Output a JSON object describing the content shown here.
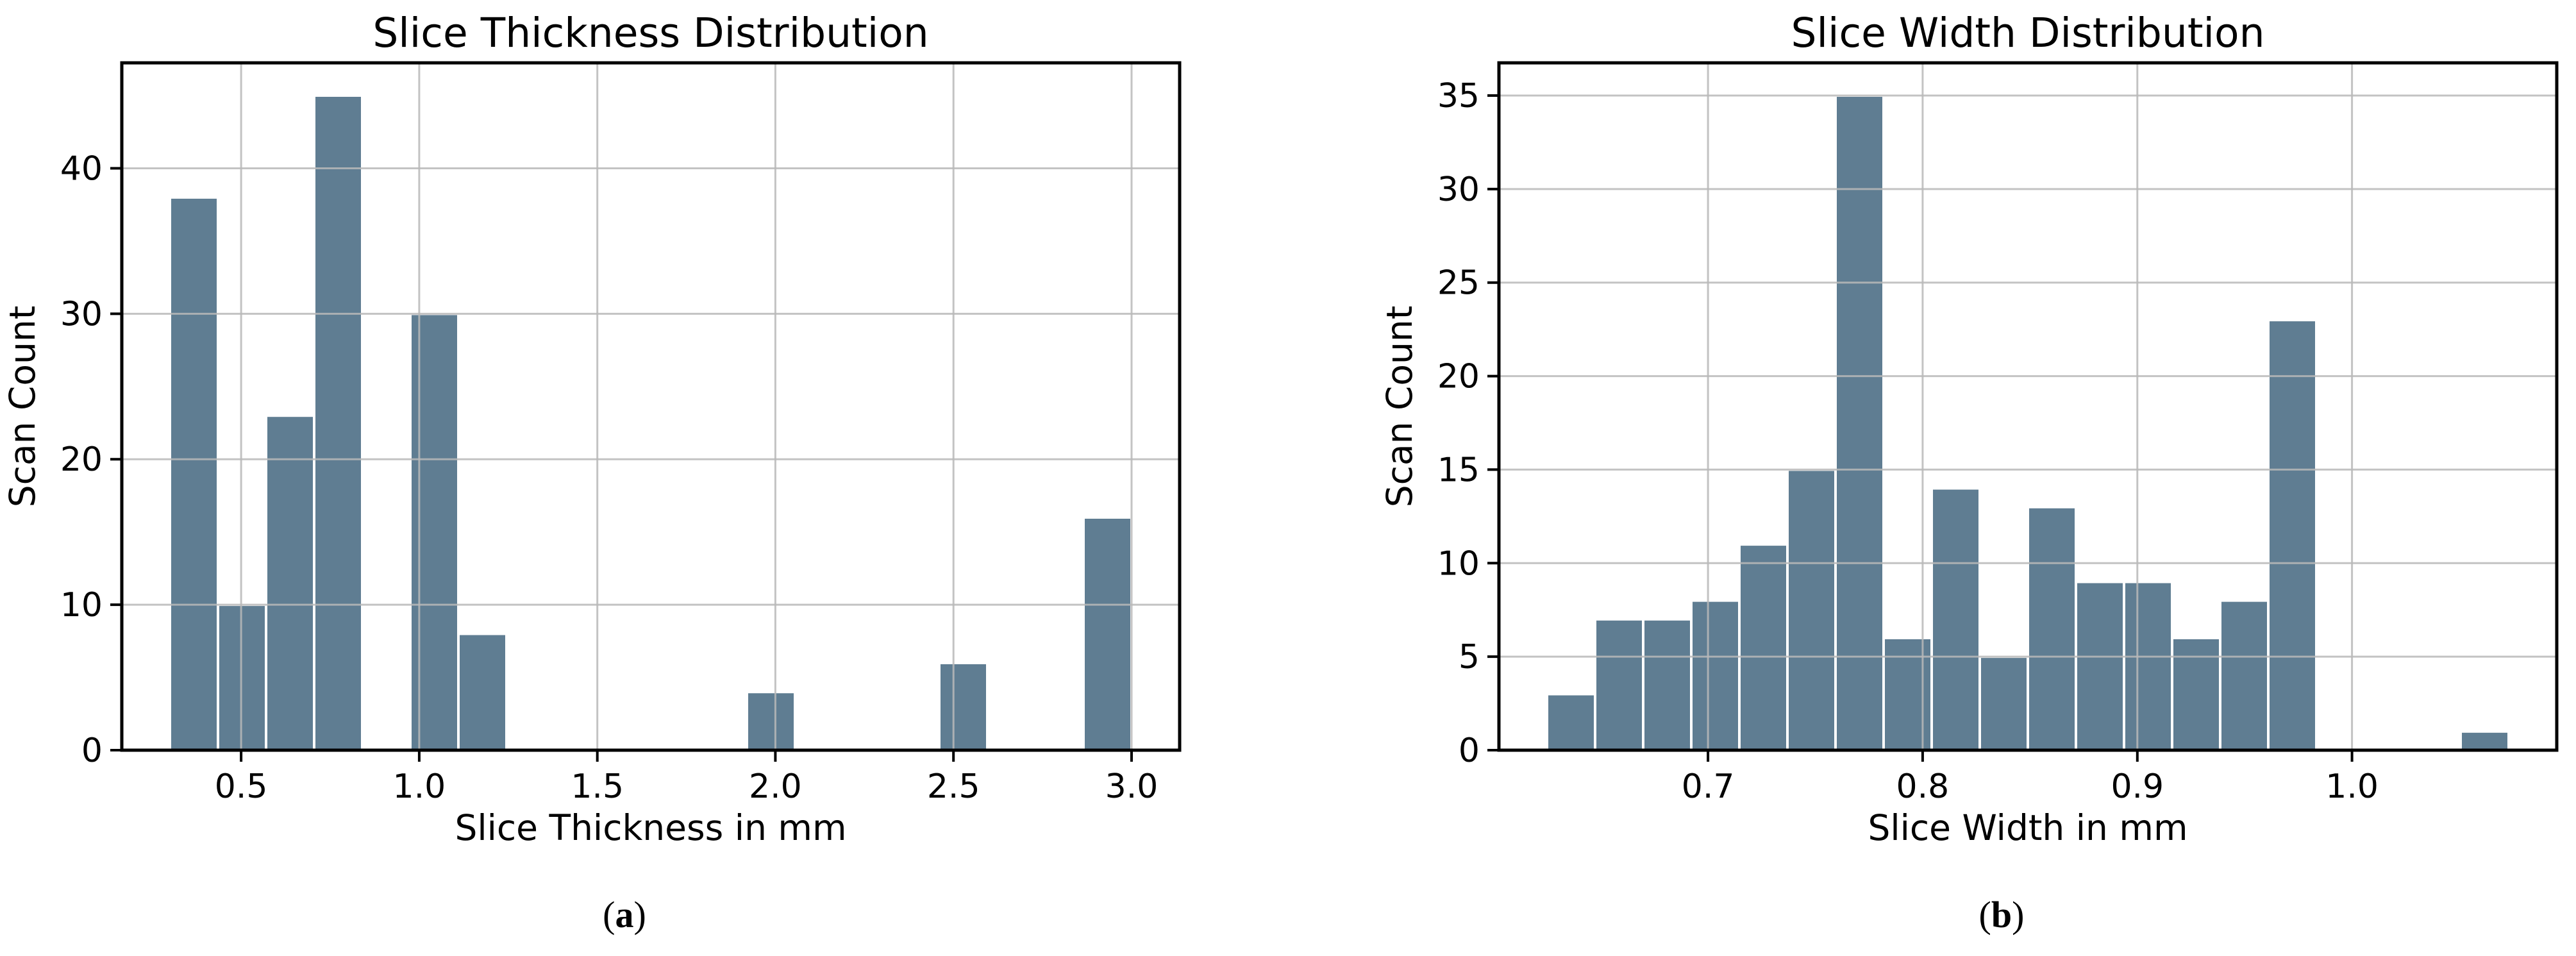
{
  "figure": {
    "background": "#ffffff",
    "captions": [
      {
        "prefix": "(",
        "letter": "a",
        "suffix": ")"
      },
      {
        "prefix": "(",
        "letter": "b",
        "suffix": ")"
      }
    ]
  },
  "style": {
    "bar_color": "#5F7D92",
    "bar_edge_color": "#ffffff",
    "grid_color": "#b9b9b9",
    "axis_color": "#000000",
    "text_color": "#000000"
  },
  "chart_data": [
    {
      "type": "bar",
      "title": "Slice Thickness Distribution",
      "xlabel": "Slice Thickness in mm",
      "ylabel": "Scan Count",
      "bin_start": 0.3,
      "bin_width": 0.135,
      "counts": [
        38,
        10,
        23,
        45,
        0,
        30,
        8,
        0,
        0,
        0,
        0,
        0,
        4,
        0,
        0,
        0,
        6,
        0,
        0,
        16
      ],
      "xticks": [
        0.5,
        1.0,
        1.5,
        2.0,
        2.5,
        3.0
      ],
      "xtick_labels": [
        "0.5",
        "1.0",
        "1.5",
        "2.0",
        "2.5",
        "3.0"
      ],
      "yticks": [
        0,
        10,
        20,
        30,
        40
      ],
      "ytick_labels": [
        "0",
        "10",
        "20",
        "30",
        "40"
      ],
      "xlim": [
        0.165,
        3.135
      ],
      "ylim": [
        0,
        47.25
      ],
      "grid": true,
      "legend": null
    },
    {
      "type": "bar",
      "title": "Slice Width Distribution",
      "xlabel": "Slice Width in mm",
      "ylabel": "Scan Count",
      "bin_start": 0.625,
      "bin_width": 0.0224,
      "counts": [
        3,
        7,
        7,
        8,
        11,
        15,
        35,
        6,
        14,
        5,
        13,
        9,
        9,
        6,
        8,
        23,
        0,
        0,
        0,
        1
      ],
      "xticks": [
        0.7,
        0.8,
        0.9,
        1.0
      ],
      "xtick_labels": [
        "0.7",
        "0.8",
        "0.9",
        "1.0"
      ],
      "yticks": [
        0,
        5,
        10,
        15,
        20,
        25,
        30,
        35
      ],
      "ytick_labels": [
        "0",
        "5",
        "10",
        "15",
        "20",
        "25",
        "30",
        "35"
      ],
      "xlim": [
        0.6026,
        1.0954
      ],
      "ylim": [
        0,
        36.75
      ],
      "grid": true,
      "legend": null
    }
  ]
}
